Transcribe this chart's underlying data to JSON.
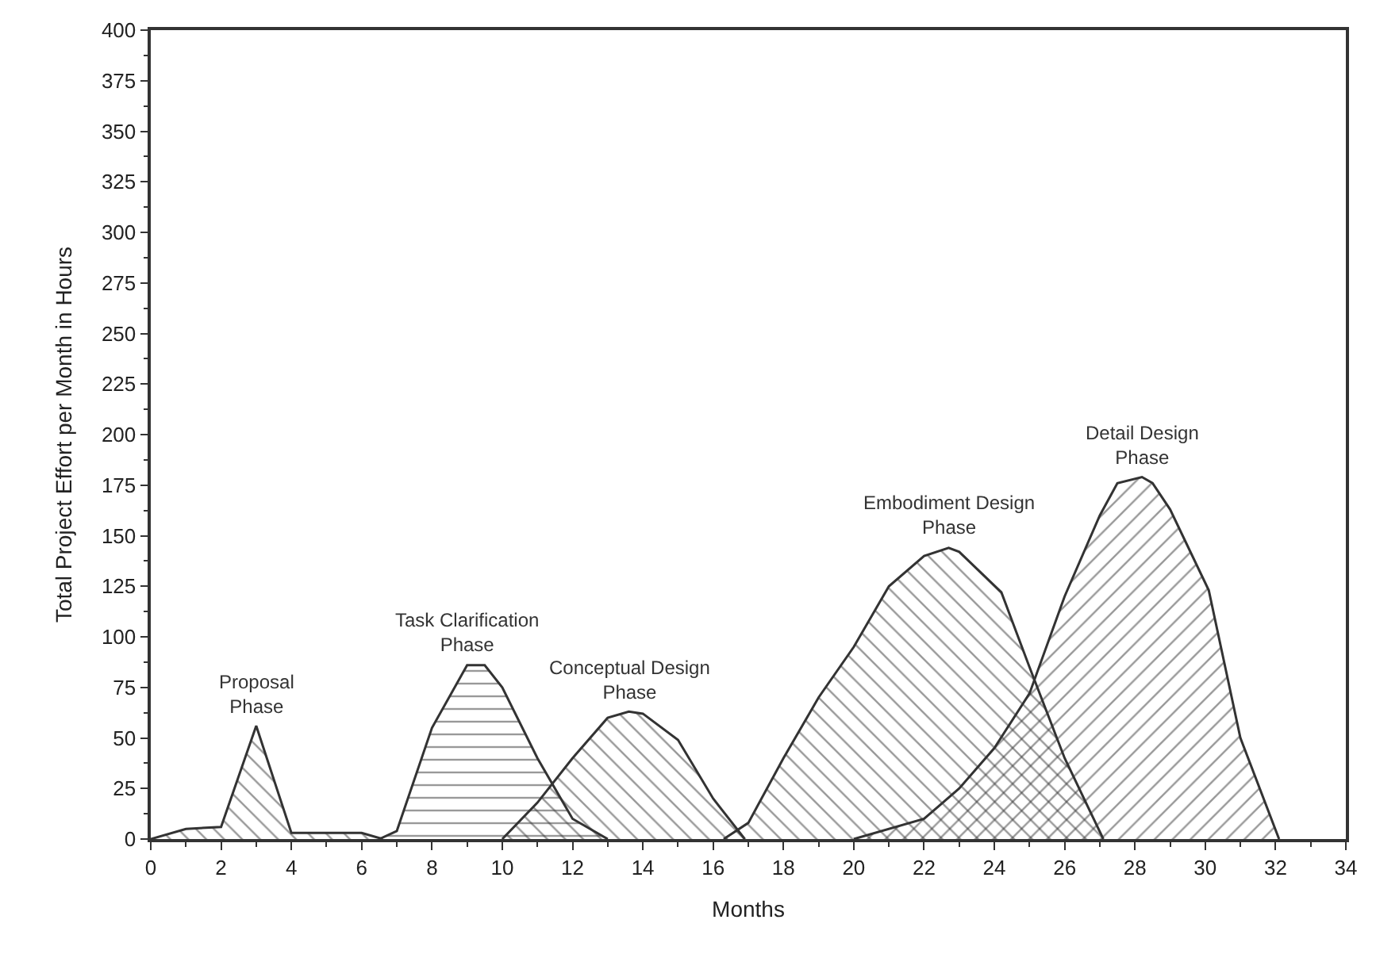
{
  "chart_data": {
    "type": "area",
    "xlabel": "Months",
    "ylabel": "Total Project Effort per Month in Hours",
    "xlim": [
      0,
      34
    ],
    "ylim": [
      0,
      400
    ],
    "xticks": [
      0,
      2,
      4,
      6,
      8,
      10,
      12,
      14,
      16,
      18,
      20,
      22,
      24,
      26,
      28,
      30,
      32,
      34
    ],
    "yticks": [
      0,
      25,
      50,
      75,
      100,
      125,
      150,
      175,
      200,
      225,
      250,
      275,
      300,
      325,
      350,
      375,
      400
    ],
    "legend": false,
    "series": [
      {
        "name": "Proposal\nPhase",
        "color": "#333333",
        "x": [
          0,
          1,
          2,
          3,
          4,
          5,
          6,
          6.6
        ],
        "values": [
          0,
          5,
          6,
          56,
          3,
          3,
          3,
          0
        ]
      },
      {
        "name": "Task Clarification\nPhase",
        "color": "#333333",
        "x": [
          6.5,
          7,
          8,
          9,
          9.5,
          10,
          11,
          12,
          13
        ],
        "values": [
          0,
          4,
          55,
          86,
          86,
          75,
          40,
          10,
          0
        ]
      },
      {
        "name": "Conceptual Design\nPhase",
        "color": "#333333",
        "x": [
          10,
          11,
          12,
          13,
          13.6,
          14,
          15,
          16,
          16.9
        ],
        "values": [
          0,
          18,
          40,
          60,
          63,
          62,
          49,
          20,
          0
        ]
      },
      {
        "name": "Embodiment Design\nPhase",
        "color": "#333333",
        "x": [
          16.3,
          17,
          18,
          19,
          20,
          21,
          22,
          22.7,
          23,
          24.2,
          25,
          26,
          27.1
        ],
        "values": [
          0,
          8,
          40,
          70,
          95,
          125,
          140,
          144,
          142,
          122,
          85,
          40,
          0
        ]
      },
      {
        "name": "Detail Design\nPhase",
        "color": "#333333",
        "x": [
          20,
          22,
          23,
          24,
          25,
          26,
          27,
          27.5,
          28.2,
          28.5,
          29,
          30.1,
          31,
          32.1
        ],
        "values": [
          0,
          10,
          25,
          45,
          72,
          120,
          160,
          176,
          179,
          176,
          163,
          123,
          50,
          0
        ]
      }
    ]
  }
}
